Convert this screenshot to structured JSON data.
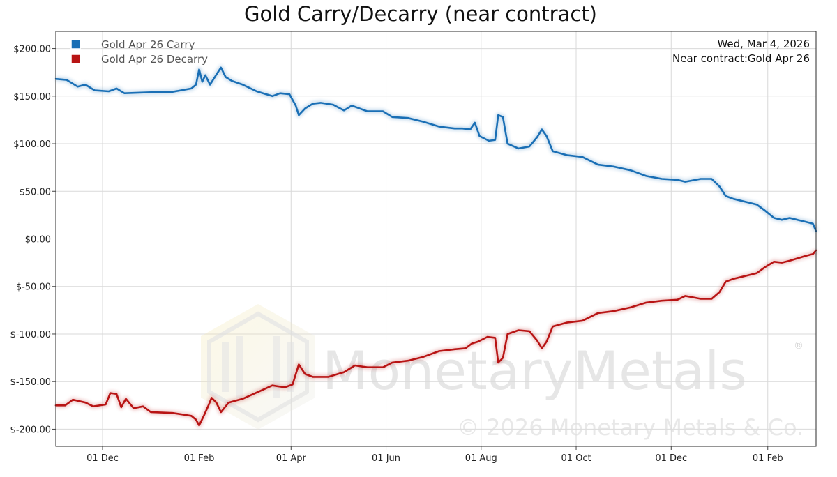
{
  "chart_data": {
    "type": "line",
    "title": "Gold Carry/Decarry (near contract)",
    "date_label": "Wed, Mar 4, 2026",
    "contract_label": "Near contract:Gold Apr 26",
    "xlabel": "",
    "ylabel": "",
    "x_range": [
      "2024-11-01",
      "2026-03-04"
    ],
    "ylim": [
      -218,
      218
    ],
    "y_ticks": [
      200,
      150,
      100,
      50,
      0,
      -50,
      -100,
      -150,
      -200
    ],
    "y_tick_labels": [
      "$200.00",
      "$150.00",
      "$100.00",
      "$50.00",
      "$0.00",
      "$-50.00",
      "$-100.00",
      "$-150.00",
      "$-200.00"
    ],
    "x_ticks": [
      "2024-12-01",
      "2025-02-01",
      "2025-04-01",
      "2025-06-01",
      "2025-08-01",
      "2025-10-01",
      "2025-12-01",
      "2026-02-01"
    ],
    "x_tick_labels": [
      "01 Dec",
      "01 Feb",
      "01 Apr",
      "01 Jun",
      "01 Aug",
      "01 Oct",
      "01 Dec",
      "01 Feb"
    ],
    "grid": true,
    "legend_position": "top-left",
    "series": [
      {
        "name": "Gold Apr 26 Carry",
        "color": "#1a6fb5",
        "points": [
          [
            "2024-11-01",
            168
          ],
          [
            "2024-11-08",
            167
          ],
          [
            "2024-11-15",
            160
          ],
          [
            "2024-11-20",
            162
          ],
          [
            "2024-11-26",
            156
          ],
          [
            "2024-12-05",
            155
          ],
          [
            "2024-12-10",
            158
          ],
          [
            "2024-12-15",
            153
          ],
          [
            "2025-01-01",
            154
          ],
          [
            "2025-01-15",
            154.5
          ],
          [
            "2025-01-27",
            158
          ],
          [
            "2025-01-30",
            162
          ],
          [
            "2025-02-01",
            178
          ],
          [
            "2025-02-03",
            165
          ],
          [
            "2025-02-05",
            172
          ],
          [
            "2025-02-08",
            162
          ],
          [
            "2025-02-13",
            175
          ],
          [
            "2025-02-15",
            180
          ],
          [
            "2025-02-18",
            170
          ],
          [
            "2025-02-22",
            166
          ],
          [
            "2025-03-01",
            162
          ],
          [
            "2025-03-10",
            155
          ],
          [
            "2025-03-20",
            150
          ],
          [
            "2025-03-25",
            153
          ],
          [
            "2025-03-31",
            152
          ],
          [
            "2025-04-04",
            140
          ],
          [
            "2025-04-06",
            130
          ],
          [
            "2025-04-10",
            137
          ],
          [
            "2025-04-15",
            142
          ],
          [
            "2025-04-20",
            143
          ],
          [
            "2025-04-28",
            141
          ],
          [
            "2025-05-05",
            135
          ],
          [
            "2025-05-10",
            140
          ],
          [
            "2025-05-20",
            134
          ],
          [
            "2025-05-30",
            134
          ],
          [
            "2025-06-05",
            128
          ],
          [
            "2025-06-15",
            127
          ],
          [
            "2025-06-25",
            123
          ],
          [
            "2025-07-05",
            118
          ],
          [
            "2025-07-15",
            116
          ],
          [
            "2025-07-20",
            116
          ],
          [
            "2025-07-25",
            115
          ],
          [
            "2025-07-28",
            122
          ],
          [
            "2025-07-31",
            108
          ],
          [
            "2025-08-06",
            103
          ],
          [
            "2025-08-10",
            104
          ],
          [
            "2025-08-12",
            130
          ],
          [
            "2025-08-15",
            128
          ],
          [
            "2025-08-18",
            100
          ],
          [
            "2025-08-25",
            95
          ],
          [
            "2025-09-01",
            97
          ],
          [
            "2025-09-06",
            107
          ],
          [
            "2025-09-09",
            115
          ],
          [
            "2025-09-12",
            108
          ],
          [
            "2025-09-16",
            92
          ],
          [
            "2025-09-25",
            88
          ],
          [
            "2025-10-05",
            86
          ],
          [
            "2025-10-10",
            82
          ],
          [
            "2025-10-15",
            78
          ],
          [
            "2025-10-25",
            76
          ],
          [
            "2025-11-05",
            72
          ],
          [
            "2025-11-15",
            66
          ],
          [
            "2025-11-25",
            63
          ],
          [
            "2025-12-05",
            62
          ],
          [
            "2025-12-10",
            60
          ],
          [
            "2025-12-20",
            63
          ],
          [
            "2025-12-27",
            63
          ],
          [
            "2026-01-01",
            55
          ],
          [
            "2026-01-05",
            45
          ],
          [
            "2026-01-10",
            42
          ],
          [
            "2026-01-20",
            38
          ],
          [
            "2026-01-25",
            36
          ],
          [
            "2026-01-30",
            30
          ],
          [
            "2026-02-05",
            22
          ],
          [
            "2026-02-10",
            20
          ],
          [
            "2026-02-15",
            22
          ],
          [
            "2026-02-25",
            18
          ],
          [
            "2026-03-02",
            16
          ],
          [
            "2026-03-04",
            8
          ]
        ]
      },
      {
        "name": "Gold Apr 26 Decarry",
        "color": "#b81414",
        "points": [
          [
            "2024-11-01",
            -175
          ],
          [
            "2024-11-07",
            -175
          ],
          [
            "2024-11-12",
            -169
          ],
          [
            "2024-11-20",
            -172
          ],
          [
            "2024-11-25",
            -176
          ],
          [
            "2024-12-03",
            -174
          ],
          [
            "2024-12-06",
            -162
          ],
          [
            "2024-12-10",
            -163
          ],
          [
            "2024-12-13",
            -177
          ],
          [
            "2024-12-16",
            -168
          ],
          [
            "2024-12-21",
            -178
          ],
          [
            "2024-12-27",
            -176
          ],
          [
            "2025-01-01",
            -182
          ],
          [
            "2025-01-15",
            -183
          ],
          [
            "2025-01-27",
            -186
          ],
          [
            "2025-01-30",
            -190
          ],
          [
            "2025-02-01",
            -196
          ],
          [
            "2025-02-04",
            -186
          ],
          [
            "2025-02-07",
            -175
          ],
          [
            "2025-02-09",
            -167
          ],
          [
            "2025-02-12",
            -172
          ],
          [
            "2025-02-15",
            -182
          ],
          [
            "2025-02-20",
            -172
          ],
          [
            "2025-03-01",
            -168
          ],
          [
            "2025-03-12",
            -160
          ],
          [
            "2025-03-20",
            -154
          ],
          [
            "2025-03-28",
            -156
          ],
          [
            "2025-04-02",
            -153
          ],
          [
            "2025-04-06",
            -132
          ],
          [
            "2025-04-10",
            -142
          ],
          [
            "2025-04-15",
            -145
          ],
          [
            "2025-04-25",
            -145
          ],
          [
            "2025-05-05",
            -140
          ],
          [
            "2025-05-12",
            -133
          ],
          [
            "2025-05-20",
            -135
          ],
          [
            "2025-05-30",
            -135
          ],
          [
            "2025-06-05",
            -130
          ],
          [
            "2025-06-15",
            -128
          ],
          [
            "2025-06-25",
            -124
          ],
          [
            "2025-07-05",
            -118
          ],
          [
            "2025-07-15",
            -116
          ],
          [
            "2025-07-22",
            -115
          ],
          [
            "2025-07-26",
            -110
          ],
          [
            "2025-07-30",
            -108
          ],
          [
            "2025-08-05",
            -103
          ],
          [
            "2025-08-10",
            -104
          ],
          [
            "2025-08-12",
            -130
          ],
          [
            "2025-08-15",
            -125
          ],
          [
            "2025-08-18",
            -100
          ],
          [
            "2025-08-25",
            -96
          ],
          [
            "2025-09-01",
            -97
          ],
          [
            "2025-09-06",
            -107
          ],
          [
            "2025-09-09",
            -115
          ],
          [
            "2025-09-12",
            -108
          ],
          [
            "2025-09-16",
            -92
          ],
          [
            "2025-09-25",
            -88
          ],
          [
            "2025-10-05",
            -86
          ],
          [
            "2025-10-10",
            -82
          ],
          [
            "2025-10-15",
            -78
          ],
          [
            "2025-10-25",
            -76
          ],
          [
            "2025-11-05",
            -72
          ],
          [
            "2025-11-15",
            -67
          ],
          [
            "2025-11-25",
            -65
          ],
          [
            "2025-12-05",
            -64
          ],
          [
            "2025-12-10",
            -60
          ],
          [
            "2025-12-20",
            -63
          ],
          [
            "2025-12-27",
            -63
          ],
          [
            "2026-01-01",
            -56
          ],
          [
            "2026-01-05",
            -45
          ],
          [
            "2026-01-10",
            -42
          ],
          [
            "2026-01-20",
            -38
          ],
          [
            "2026-01-25",
            -36
          ],
          [
            "2026-01-30",
            -30
          ],
          [
            "2026-02-05",
            -24
          ],
          [
            "2026-02-10",
            -25
          ],
          [
            "2026-02-15",
            -23
          ],
          [
            "2026-02-25",
            -18
          ],
          [
            "2026-03-02",
            -16
          ],
          [
            "2026-03-04",
            -12
          ]
        ]
      }
    ],
    "watermark": {
      "brand": "MonetaryMetals",
      "registered": "®",
      "copyright": "© 2026 Monetary Metals & Co."
    }
  }
}
